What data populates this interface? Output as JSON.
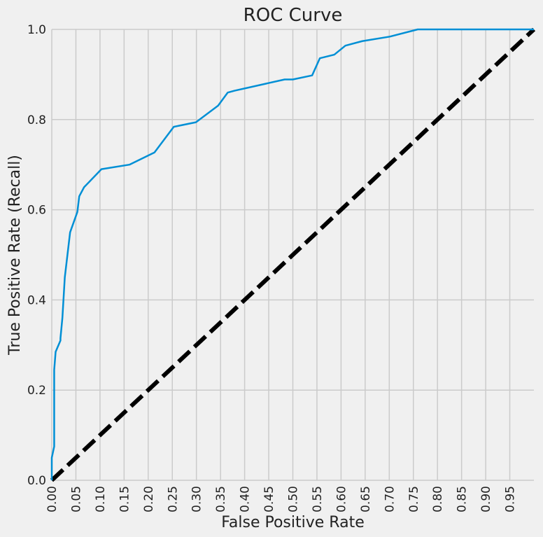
{
  "chart_data": {
    "type": "line",
    "title": "ROC Curve",
    "xlabel": "False Positive Rate",
    "ylabel": "True Positive Rate (Recall)",
    "xlim": [
      0,
      1
    ],
    "ylim": [
      0,
      1
    ],
    "grid": true,
    "x_ticks": [
      0.0,
      0.05,
      0.1,
      0.15,
      0.2,
      0.25,
      0.3,
      0.35,
      0.4,
      0.45,
      0.5,
      0.55,
      0.6,
      0.65,
      0.7,
      0.75,
      0.8,
      0.85,
      0.9,
      0.95
    ],
    "x_tick_labels": [
      "0.00",
      "0.05",
      "0.10",
      "0.15",
      "0.20",
      "0.25",
      "0.30",
      "0.35",
      "0.40",
      "0.45",
      "0.50",
      "0.55",
      "0.60",
      "0.65",
      "0.70",
      "0.75",
      "0.80",
      "0.85",
      "0.90",
      "0.95"
    ],
    "y_ticks": [
      0.0,
      0.2,
      0.4,
      0.6,
      0.8,
      1.0
    ],
    "y_tick_labels": [
      "0.0",
      "0.2",
      "0.4",
      "0.6",
      "0.8",
      "1.0"
    ],
    "series": [
      {
        "color": "#008fd5",
        "style": "solid",
        "x": [
          0.0,
          0.0,
          0.002,
          0.005,
          0.005,
          0.008,
          0.012,
          0.018,
          0.018,
          0.022,
          0.027,
          0.038,
          0.053,
          0.057,
          0.067,
          0.103,
          0.161,
          0.213,
          0.253,
          0.299,
          0.345,
          0.365,
          0.379,
          0.483,
          0.5,
          0.54,
          0.556,
          0.586,
          0.609,
          0.644,
          0.701,
          0.759,
          0.782,
          0.885,
          1.0
        ],
        "y": [
          0.0,
          0.05,
          0.06,
          0.075,
          0.245,
          0.285,
          0.295,
          0.31,
          0.315,
          0.36,
          0.45,
          0.55,
          0.595,
          0.63,
          0.65,
          0.69,
          0.7,
          0.727,
          0.784,
          0.794,
          0.831,
          0.86,
          0.864,
          0.889,
          0.889,
          0.898,
          0.936,
          0.944,
          0.964,
          0.974,
          0.984,
          1.0,
          1.0,
          1.0,
          1.0
        ]
      },
      {
        "color": "#000000",
        "style": "dashed",
        "x": [
          0,
          1
        ],
        "y": [
          0,
          1
        ]
      }
    ]
  }
}
